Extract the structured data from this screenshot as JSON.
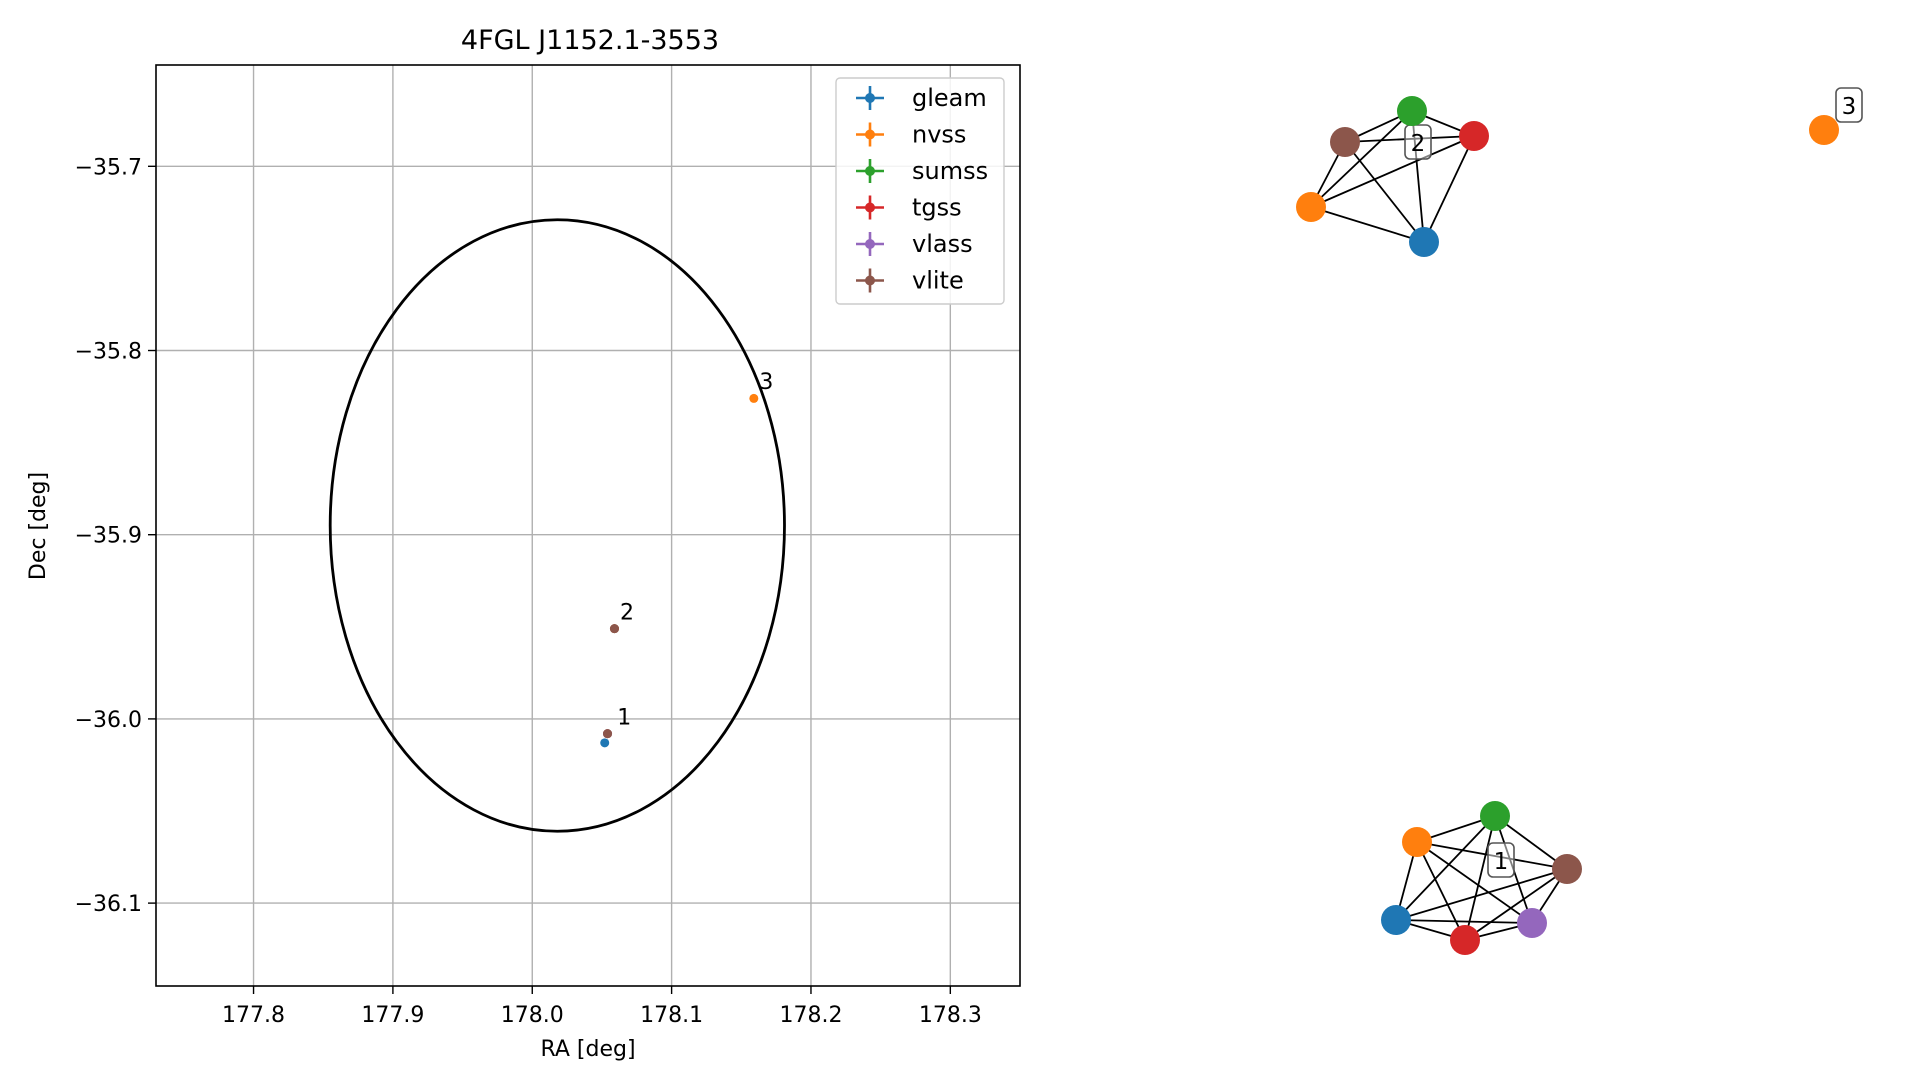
{
  "chart_data": {
    "type": "scatter",
    "title": "4FGL J1152.1-3553",
    "xlabel": "RA [deg]",
    "ylabel": "Dec [deg]",
    "xlim": [
      177.73,
      178.35
    ],
    "ylim": [
      -36.145,
      -35.645
    ],
    "xticks": [
      177.8,
      177.9,
      178.0,
      178.1,
      178.2,
      178.3
    ],
    "xtick_labels": [
      "177.8",
      "177.9",
      "178.0",
      "178.1",
      "178.2",
      "178.3"
    ],
    "yticks": [
      -35.7,
      -35.8,
      -35.9,
      -36.0,
      -36.1
    ],
    "ytick_labels": [
      "−35.7",
      "−35.8",
      "−35.9",
      "−36.0",
      "−36.1"
    ],
    "grid": true,
    "legend_position": "upper right",
    "series": [
      {
        "name": "gleam",
        "color": "#1f77b4",
        "points": [
          {
            "x": 178.052,
            "y": -36.013
          }
        ]
      },
      {
        "name": "nvss",
        "color": "#ff7f0e",
        "points": [
          {
            "x": 178.159,
            "y": -35.826
          },
          {
            "x": 178.054,
            "y": -36.008
          }
        ]
      },
      {
        "name": "sumss",
        "color": "#2ca02c",
        "points": [
          {
            "x": 178.059,
            "y": -35.951
          },
          {
            "x": 178.054,
            "y": -36.008
          }
        ]
      },
      {
        "name": "tgss",
        "color": "#d62728",
        "points": [
          {
            "x": 178.059,
            "y": -35.951
          },
          {
            "x": 178.054,
            "y": -36.008
          }
        ]
      },
      {
        "name": "vlass",
        "color": "#9467bd",
        "points": [
          {
            "x": 178.054,
            "y": -36.008
          }
        ]
      },
      {
        "name": "vlite",
        "color": "#8c564b",
        "points": [
          {
            "x": 178.059,
            "y": -35.951
          },
          {
            "x": 178.054,
            "y": -36.008
          }
        ]
      }
    ],
    "ellipse": {
      "center_ra": 178.018,
      "center_dec": -35.895,
      "semi_ra": 0.163,
      "semi_dec": 0.166,
      "color": "#000000"
    },
    "annotations": [
      {
        "text": "1",
        "x": 178.061,
        "y": -36.003
      },
      {
        "text": "2",
        "x": 178.063,
        "y": -35.946
      },
      {
        "text": "3",
        "x": 178.163,
        "y": -35.821
      }
    ],
    "graph": {
      "edge_color": "#000000",
      "clusters": [
        {
          "label": "2",
          "nodes": [
            "sumss",
            "tgss",
            "vlite",
            "nvss",
            "gleam"
          ]
        },
        {
          "label": "3",
          "nodes": [
            "nvss"
          ]
        },
        {
          "label": "1",
          "nodes": [
            "sumss",
            "nvss",
            "vlite",
            "gleam",
            "tgss",
            "vlass"
          ]
        }
      ]
    }
  }
}
